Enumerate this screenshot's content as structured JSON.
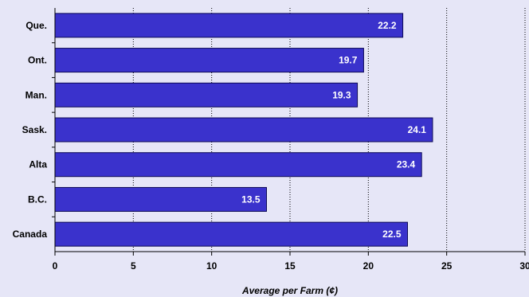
{
  "colors": {
    "background": "#e6e6f7",
    "plot_background": "#e6e6f7",
    "bar_fill": "#3a32cc",
    "bar_stroke": "#0d0a55",
    "grid": "#000000",
    "axis": "#000000",
    "data_label": "#ffffff"
  },
  "chart_data": {
    "type": "bar",
    "orientation": "horizontal",
    "categories": [
      "Que.",
      "Ont.",
      "Man.",
      "Sask.",
      "Alta",
      "B.C.",
      "Canada"
    ],
    "values": [
      22.2,
      19.7,
      19.3,
      24.1,
      23.4,
      13.5,
      22.5
    ],
    "data_labels": [
      "22.2",
      "19.7",
      "19.3",
      "24.1",
      "23.4",
      "13.5",
      "22.5"
    ],
    "title": "",
    "xlabel": "Average per Farm (¢)",
    "ylabel": "",
    "xlim": [
      0,
      30
    ],
    "xticks": [
      0,
      5,
      10,
      15,
      20,
      25,
      30
    ],
    "xtick_labels": [
      "0",
      "5",
      "10",
      "15",
      "20",
      "25",
      "30"
    ],
    "grid": "vertical dotted",
    "legend": "none"
  }
}
